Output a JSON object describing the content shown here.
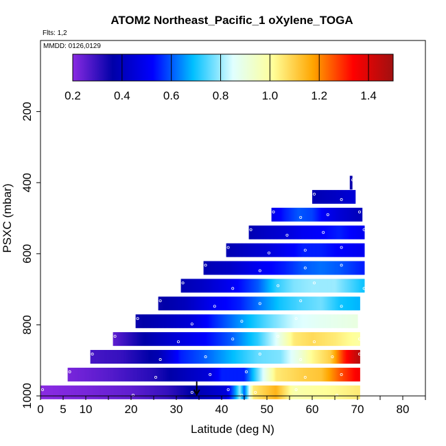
{
  "chart_data": {
    "type": "heatmap",
    "title": "ATOM2 Northeast_Pacific_1 oXylene_TOGA",
    "flights_label": "Flts: 1,2",
    "dates_label": "MMDD: 0126,0129",
    "xlabel": "Latitude (deg N)",
    "ylabel": "PSXC (mbar)",
    "xlim": [
      0,
      85
    ],
    "ylim": [
      1000,
      0
    ],
    "x_ticks": [
      0,
      5,
      10,
      20,
      30,
      40,
      50,
      60,
      70,
      80
    ],
    "y_ticks": [
      200,
      400,
      600,
      800,
      1000
    ],
    "colorbar": {
      "min": 0.2,
      "max": 1.5,
      "ticks": [
        0.2,
        0.4,
        0.6,
        0.8,
        1.0,
        1.2,
        1.4
      ],
      "tick_labels": [
        "0.2",
        "0.4",
        "0.6",
        "0.8",
        "1.0",
        "1.2",
        "1.4"
      ],
      "colors": [
        "#8a2be2",
        "#0000a8",
        "#0000ff",
        "#00bfff",
        "#e0ffff",
        "#ffff99",
        "#ffa500",
        "#ff0000",
        "#a01010"
      ]
    },
    "arrow_latitude": 34.5,
    "rows": [
      {
        "p": 990,
        "lat": [
          0,
          10,
          20,
          28,
          33,
          38,
          41,
          43,
          44,
          45,
          47,
          52,
          56,
          60,
          65,
          70
        ],
        "v": [
          0.2,
          0.22,
          0.25,
          0.3,
          0.36,
          0.42,
          0.46,
          0.65,
          0.8,
          0.6,
          1.05,
          1.15,
          0.98,
          1.0,
          1.02,
          1.05
        ]
      },
      {
        "p": 940,
        "lat": [
          6,
          15,
          25,
          32,
          37,
          40,
          45,
          52,
          58,
          62,
          66,
          70
        ],
        "v": [
          0.22,
          0.26,
          0.32,
          0.4,
          0.45,
          0.55,
          0.55,
          1.05,
          1.1,
          1.12,
          1.25,
          1.35
        ]
      },
      {
        "p": 890,
        "lat": [
          11,
          18,
          26,
          31,
          36,
          42,
          48,
          53,
          57,
          60,
          64,
          67,
          70
        ],
        "v": [
          0.28,
          0.3,
          0.38,
          0.55,
          0.6,
          0.68,
          0.76,
          0.78,
          0.9,
          1.02,
          1.1,
          1.3,
          1.45
        ]
      },
      {
        "p": 840,
        "lat": [
          16,
          22,
          30,
          36,
          42,
          48,
          52,
          56,
          60,
          65,
          70
        ],
        "v": [
          0.25,
          0.35,
          0.45,
          0.52,
          0.6,
          0.72,
          0.85,
          1.05,
          1.08,
          1.05,
          1.0
        ]
      },
      {
        "p": 790,
        "lat": [
          21,
          28,
          33,
          38,
          44,
          50,
          56,
          62,
          70
        ],
        "v": [
          0.35,
          0.4,
          0.45,
          0.55,
          0.65,
          0.75,
          0.84,
          0.87,
          0.9
        ]
      },
      {
        "p": 740,
        "lat": [
          26,
          32,
          38,
          44,
          48,
          53,
          57,
          62,
          66,
          70
        ],
        "v": [
          0.35,
          0.4,
          0.5,
          0.55,
          0.62,
          0.7,
          0.74,
          0.77,
          0.7,
          0.68
        ]
      },
      {
        "p": 690,
        "lat": [
          31,
          36,
          42,
          48,
          52,
          56,
          60,
          65,
          71
        ],
        "v": [
          0.38,
          0.42,
          0.5,
          0.6,
          0.72,
          0.78,
          0.8,
          0.8,
          0.7
        ]
      },
      {
        "p": 640,
        "lat": [
          36,
          42,
          48,
          54,
          58,
          62,
          66,
          71
        ],
        "v": [
          0.38,
          0.42,
          0.5,
          0.55,
          0.6,
          0.62,
          0.6,
          0.55
        ]
      },
      {
        "p": 590,
        "lat": [
          41,
          46,
          50,
          54,
          58,
          62,
          66,
          71
        ],
        "v": [
          0.38,
          0.42,
          0.45,
          0.5,
          0.55,
          0.55,
          0.52,
          0.5
        ]
      },
      {
        "p": 540,
        "lat": [
          46,
          50,
          54,
          58,
          62,
          66,
          71
        ],
        "v": [
          0.38,
          0.42,
          0.45,
          0.5,
          0.52,
          0.55,
          0.5
        ]
      },
      {
        "p": 490,
        "lat": [
          51,
          54,
          57,
          60,
          63,
          66,
          70
        ],
        "v": [
          0.48,
          0.55,
          0.6,
          0.58,
          0.5,
          0.45,
          0.4
        ]
      },
      {
        "p": 440,
        "lat": [
          60,
          63,
          66,
          69
        ],
        "v": [
          0.38,
          0.4,
          0.42,
          0.45
        ]
      },
      {
        "p": 400,
        "lat": [
          68.5
        ],
        "v": [
          0.35
        ]
      }
    ],
    "row_extents": [
      {
        "p": 990,
        "x0": 0,
        "x1": 70.5
      },
      {
        "p": 940,
        "x0": 6,
        "x1": 70.5
      },
      {
        "p": 890,
        "x0": 11,
        "x1": 70.5
      },
      {
        "p": 840,
        "x0": 16,
        "x1": 70.5
      },
      {
        "p": 790,
        "x0": 21,
        "x1": 70
      },
      {
        "p": 740,
        "x0": 26,
        "x1": 70.5
      },
      {
        "p": 690,
        "x0": 31,
        "x1": 71.5
      },
      {
        "p": 640,
        "x0": 36,
        "x1": 71.5
      },
      {
        "p": 590,
        "x0": 41,
        "x1": 71.5
      },
      {
        "p": 540,
        "x0": 46,
        "x1": 71.5
      },
      {
        "p": 490,
        "x0": 51,
        "x1": 71
      },
      {
        "p": 440,
        "x0": 60,
        "x1": 69.5
      },
      {
        "p": 400,
        "x0": 68.3,
        "x1": 68.8
      }
    ]
  }
}
